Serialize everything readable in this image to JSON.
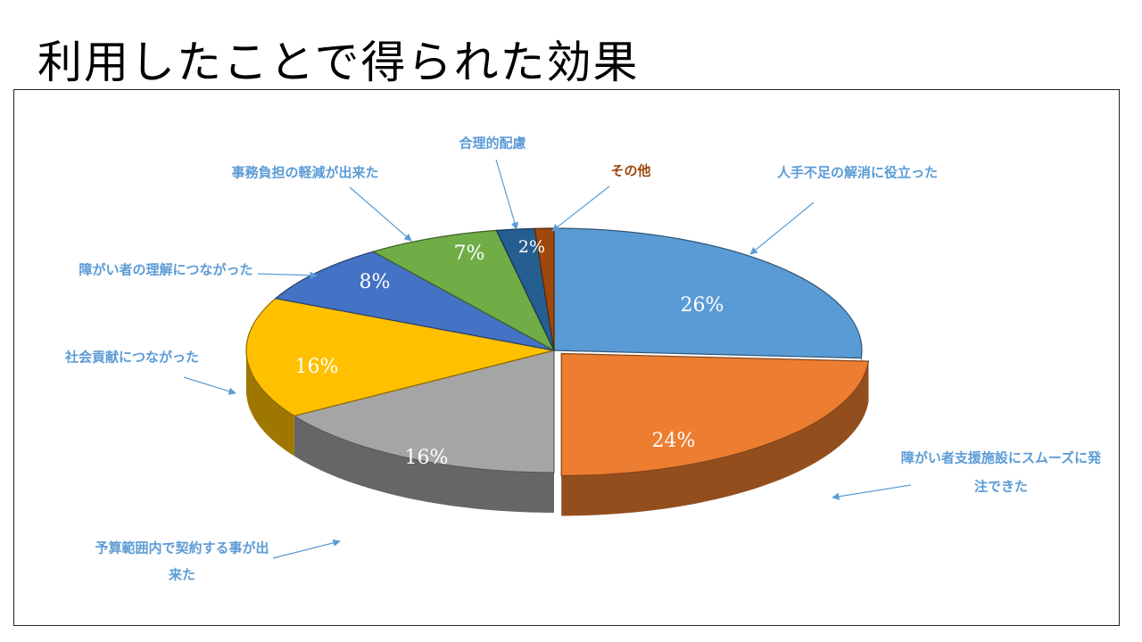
{
  "title": "利用したことで得られた効果",
  "chart_data": {
    "type": "pie",
    "variant": "3d-exploded",
    "slices": [
      {
        "label": "人手不足の解消に役立った",
        "value": 26,
        "value_label": "26%",
        "color": "#5B9BD5"
      },
      {
        "label": "障がい者支援施設にスムーズに発注できた",
        "value": 24,
        "value_label": "24%",
        "color": "#ED7D31"
      },
      {
        "label": "予算範囲内で契約する事が出来た",
        "value": 16,
        "value_label": "16%",
        "color": "#A5A5A5"
      },
      {
        "label": "社会貢献につながった",
        "value": 16,
        "value_label": "16%",
        "color": "#FFC000"
      },
      {
        "label": "障がい者の理解につながった",
        "value": 8,
        "value_label": "8%",
        "color": "#4472C4"
      },
      {
        "label": "事務負担の軽減が出来た",
        "value": 7,
        "value_label": "7%",
        "color": "#70AD47"
      },
      {
        "label": "合理的配慮",
        "value": 2,
        "value_label": "2%",
        "color": "#255E91"
      },
      {
        "label": "その他",
        "value": 1,
        "value_label": "",
        "color": "#9E480E"
      }
    ],
    "callout_color": "#5B9BD5",
    "other_callout_color": "#9E480E"
  }
}
